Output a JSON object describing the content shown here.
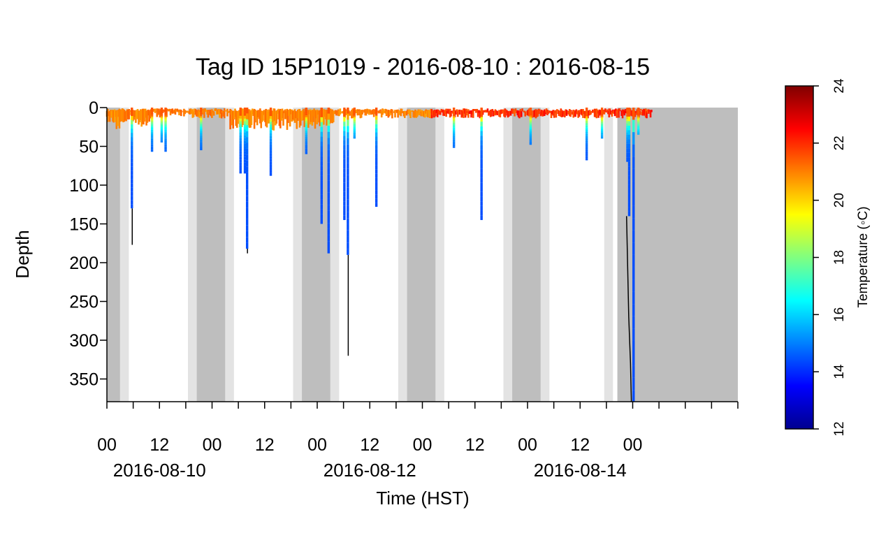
{
  "title": "Tag ID 15P1019 - 2016-08-10 : 2016-08-15",
  "colorbar": {
    "label": "Temperature (◦C)",
    "min": 12,
    "max": 24,
    "ticks": [
      "12",
      "14",
      "16",
      "18",
      "20",
      "22",
      "24"
    ],
    "palette": [
      "#00008f",
      "#0000ff",
      "#0080ff",
      "#00ffff",
      "#80ff80",
      "#ffff00",
      "#ff8000",
      "#ff0000",
      "#800000"
    ]
  },
  "chart_data": {
    "type": "line",
    "title": "Tag ID 15P1019 - 2016-08-10 : 2016-08-15",
    "xlabel": "Time (HST)",
    "ylabel": "Depth",
    "x_unit": "hours since 2016-08-10 00:00 HST",
    "xlim": [
      0,
      144
    ],
    "ylim": [
      380,
      0
    ],
    "y_ticks": [
      "0",
      "50",
      "100",
      "150",
      "200",
      "250",
      "300",
      "350"
    ],
    "x_tick_labels": [
      "00",
      "12",
      "00",
      "12",
      "00",
      "12",
      "00",
      "12",
      "00",
      "12",
      "00"
    ],
    "date_labels": [
      "2016-08-10",
      "2016-08-12",
      "2016-08-14"
    ],
    "shading": {
      "night": [
        [
          0,
          3
        ],
        [
          20.5,
          27
        ],
        [
          44.5,
          51
        ],
        [
          68.5,
          75
        ],
        [
          92.5,
          99
        ],
        [
          116.5,
          144
        ]
      ],
      "twilight": [
        [
          3,
          5
        ],
        [
          18.5,
          20.5
        ],
        [
          27,
          29
        ],
        [
          42.5,
          44.5
        ],
        [
          51,
          53
        ],
        [
          66.5,
          68.5
        ],
        [
          75,
          77
        ],
        [
          90.5,
          92.5
        ],
        [
          99,
          101
        ],
        [
          113.5,
          115.5
        ],
        [
          129.5,
          131.5
        ]
      ],
      "colors": {
        "night": "#bebebe",
        "twilight": "#e3e3e3"
      }
    },
    "dives": [
      {
        "time": 5.7,
        "depth": 130,
        "extent": 177
      },
      {
        "time": 10.3,
        "depth": 57
      },
      {
        "time": 12.5,
        "depth": 45
      },
      {
        "time": 13.4,
        "depth": 57
      },
      {
        "time": 21.5,
        "depth": 55
      },
      {
        "time": 30.5,
        "depth": 85
      },
      {
        "time": 31.5,
        "depth": 85
      },
      {
        "time": 32.0,
        "depth": 182,
        "extent": 188
      },
      {
        "time": 37.4,
        "depth": 88
      },
      {
        "time": 45.5,
        "depth": 60
      },
      {
        "time": 49.0,
        "depth": 150
      },
      {
        "time": 50.6,
        "depth": 188
      },
      {
        "time": 54.2,
        "depth": 145
      },
      {
        "time": 55.0,
        "depth": 190,
        "extent": 320
      },
      {
        "time": 56.5,
        "depth": 40
      },
      {
        "time": 61.5,
        "depth": 128
      },
      {
        "time": 79.2,
        "depth": 52
      },
      {
        "time": 85.5,
        "depth": 145
      },
      {
        "time": 96.7,
        "depth": 48
      },
      {
        "time": 109.5,
        "depth": 68
      },
      {
        "time": 113.0,
        "depth": 40
      },
      {
        "time": 118.8,
        "depth": 70
      },
      {
        "time": 119.2,
        "depth": 140
      },
      {
        "time": 120.2,
        "depth": 380
      },
      {
        "time": 121.3,
        "depth": 35
      }
    ],
    "deep_excursion": {
      "time_start": 118.6,
      "time_end": 120.0,
      "depth": 380
    },
    "data_end": 124.5
  }
}
